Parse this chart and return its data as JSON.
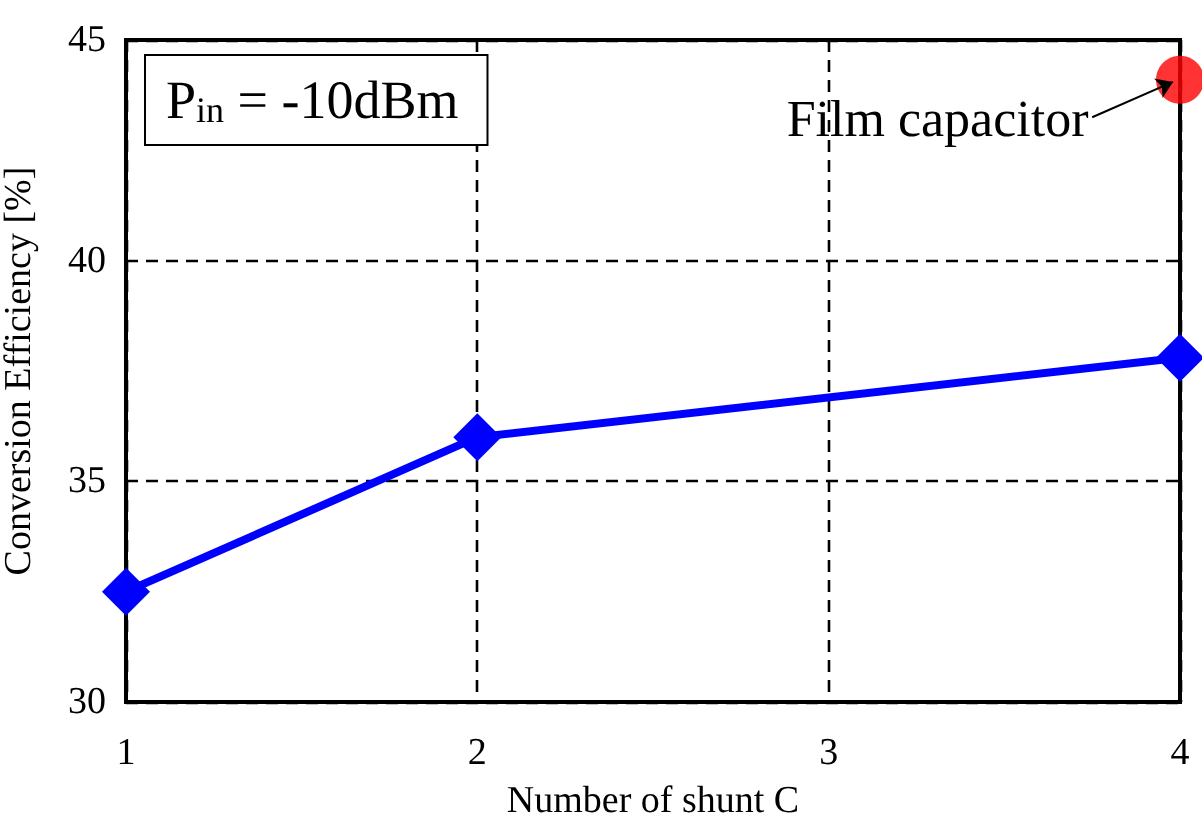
{
  "chart_data": {
    "type": "line",
    "xlabel": "Number of shunt C",
    "ylabel": "Conversion Efficiency [%]",
    "xlim": [
      1,
      4
    ],
    "xticks": [
      1,
      2,
      3,
      4
    ],
    "ylim": [
      30,
      45
    ],
    "yticks": [
      30,
      35,
      40,
      45
    ],
    "grid": true,
    "series": [
      {
        "color": "#0000ff",
        "marker": "diamond",
        "x": [
          1,
          2,
          4
        ],
        "values": [
          32.5,
          36.0,
          37.8
        ]
      },
      {
        "type": "scatter",
        "color": "#ff0000",
        "marker": "circle",
        "x": [
          4
        ],
        "values": [
          44.1
        ]
      }
    ],
    "annotations": [
      "P$_{in}$ = -10dBm",
      {
        "text": "Film capacitor",
        "x": 4,
        "y": 44.1
      }
    ]
  }
}
